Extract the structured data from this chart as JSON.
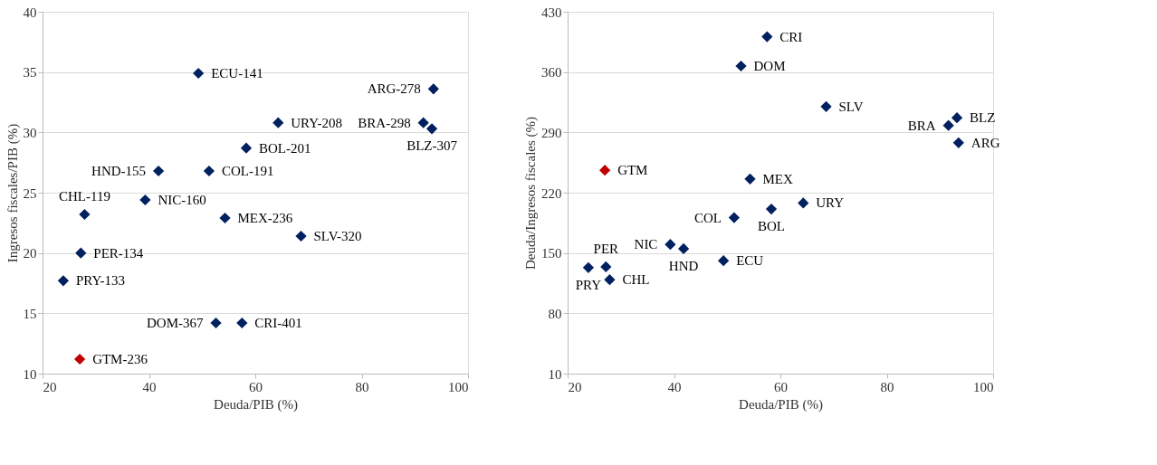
{
  "chart_data": [
    {
      "type": "scatter",
      "xlabel": "Deuda/PIB (%)",
      "ylabel": "Ingresos fiscales/PIB (%)",
      "xlim": [
        20,
        100
      ],
      "xticks": [
        20,
        40,
        60,
        80,
        100
      ],
      "ylim": [
        10,
        40
      ],
      "yticks": [
        10,
        15,
        20,
        25,
        30,
        35,
        40
      ],
      "grid": "y",
      "marker": "diamond",
      "x": [
        49.3,
        93.5,
        64.3,
        91.6,
        93.2,
        58.3,
        41.8,
        51.3,
        39.3,
        27.9,
        54.3,
        68.6,
        27.2,
        23.9,
        52.6,
        57.5,
        27.0
      ],
      "values": [
        34.9,
        33.6,
        30.8,
        30.8,
        30.3,
        28.7,
        26.8,
        26.8,
        24.4,
        23.2,
        22.9,
        21.4,
        20.0,
        17.7,
        14.2,
        14.2,
        11.2
      ],
      "colors": [
        "#002060",
        "#002060",
        "#002060",
        "#002060",
        "#002060",
        "#002060",
        "#002060",
        "#002060",
        "#002060",
        "#002060",
        "#002060",
        "#002060",
        "#002060",
        "#002060",
        "#002060",
        "#002060",
        "#c00000"
      ],
      "annotations": [
        {
          "text": "ECU-141",
          "x": 49.3,
          "y": 34.9
        },
        {
          "text": "ARG-278",
          "x": 93.5,
          "y": 33.6
        },
        {
          "text": "URY-208",
          "x": 64.3,
          "y": 30.8
        },
        {
          "text": "BRA-298",
          "x": 91.6,
          "y": 30.8
        },
        {
          "text": "BLZ-307",
          "x": 93.2,
          "y": 30.3
        },
        {
          "text": "BOL-201",
          "x": 58.3,
          "y": 28.7
        },
        {
          "text": "HND-155",
          "x": 41.8,
          "y": 26.8
        },
        {
          "text": "COL-191",
          "x": 51.3,
          "y": 26.8
        },
        {
          "text": "NIC-160",
          "x": 39.3,
          "y": 24.4
        },
        {
          "text": "CHL-119",
          "x": 27.9,
          "y": 23.2
        },
        {
          "text": "MEX-236",
          "x": 54.3,
          "y": 22.9
        },
        {
          "text": "SLV-320",
          "x": 68.6,
          "y": 21.4
        },
        {
          "text": "PER-134",
          "x": 27.2,
          "y": 20.0
        },
        {
          "text": "PRY-133",
          "x": 23.9,
          "y": 17.7
        },
        {
          "text": "DOM-367",
          "x": 52.6,
          "y": 14.2
        },
        {
          "text": "CRI-401",
          "x": 57.5,
          "y": 14.2
        },
        {
          "text": "GTM-236",
          "x": 27.0,
          "y": 11.2
        }
      ]
    },
    {
      "type": "scatter",
      "xlabel": "Deuda/PIB (%)",
      "ylabel": "Deuda/Ingresos fiscales  (%)",
      "xlim": [
        20,
        100
      ],
      "xticks": [
        20,
        40,
        60,
        80,
        100
      ],
      "ylim": [
        10,
        430
      ],
      "yticks": [
        10,
        80,
        150,
        220,
        290,
        360,
        430
      ],
      "grid": "y",
      "marker": "diamond",
      "x": [
        57.5,
        52.6,
        68.6,
        93.2,
        91.6,
        93.5,
        27.0,
        54.3,
        64.3,
        58.3,
        51.3,
        39.3,
        41.8,
        49.3,
        27.2,
        23.9,
        27.9
      ],
      "values": [
        401,
        367,
        320,
        307,
        298,
        278,
        246,
        236,
        208,
        201,
        191,
        160,
        155,
        141,
        134,
        133,
        119
      ],
      "colors": [
        "#002060",
        "#002060",
        "#002060",
        "#002060",
        "#002060",
        "#002060",
        "#c00000",
        "#002060",
        "#002060",
        "#002060",
        "#002060",
        "#002060",
        "#002060",
        "#002060",
        "#002060",
        "#002060",
        "#002060"
      ],
      "annotations": [
        {
          "text": "CRI",
          "x": 57.5,
          "y": 401
        },
        {
          "text": "DOM",
          "x": 52.6,
          "y": 367
        },
        {
          "text": "SLV",
          "x": 68.6,
          "y": 320
        },
        {
          "text": "BLZ",
          "x": 93.2,
          "y": 307
        },
        {
          "text": "BRA",
          "x": 91.6,
          "y": 298
        },
        {
          "text": "ARG",
          "x": 93.5,
          "y": 278
        },
        {
          "text": "GTM",
          "x": 27.0,
          "y": 246
        },
        {
          "text": "MEX",
          "x": 54.3,
          "y": 236
        },
        {
          "text": "URY",
          "x": 64.3,
          "y": 208
        },
        {
          "text": "BOL",
          "x": 58.3,
          "y": 201
        },
        {
          "text": "COL",
          "x": 51.3,
          "y": 191
        },
        {
          "text": "NIC",
          "x": 39.3,
          "y": 160
        },
        {
          "text": "HND",
          "x": 41.8,
          "y": 155
        },
        {
          "text": "ECU",
          "x": 49.3,
          "y": 141
        },
        {
          "text": "PER",
          "x": 27.2,
          "y": 134
        },
        {
          "text": "PRY",
          "x": 23.9,
          "y": 133
        },
        {
          "text": "CHL",
          "x": 27.9,
          "y": 119
        }
      ]
    }
  ]
}
